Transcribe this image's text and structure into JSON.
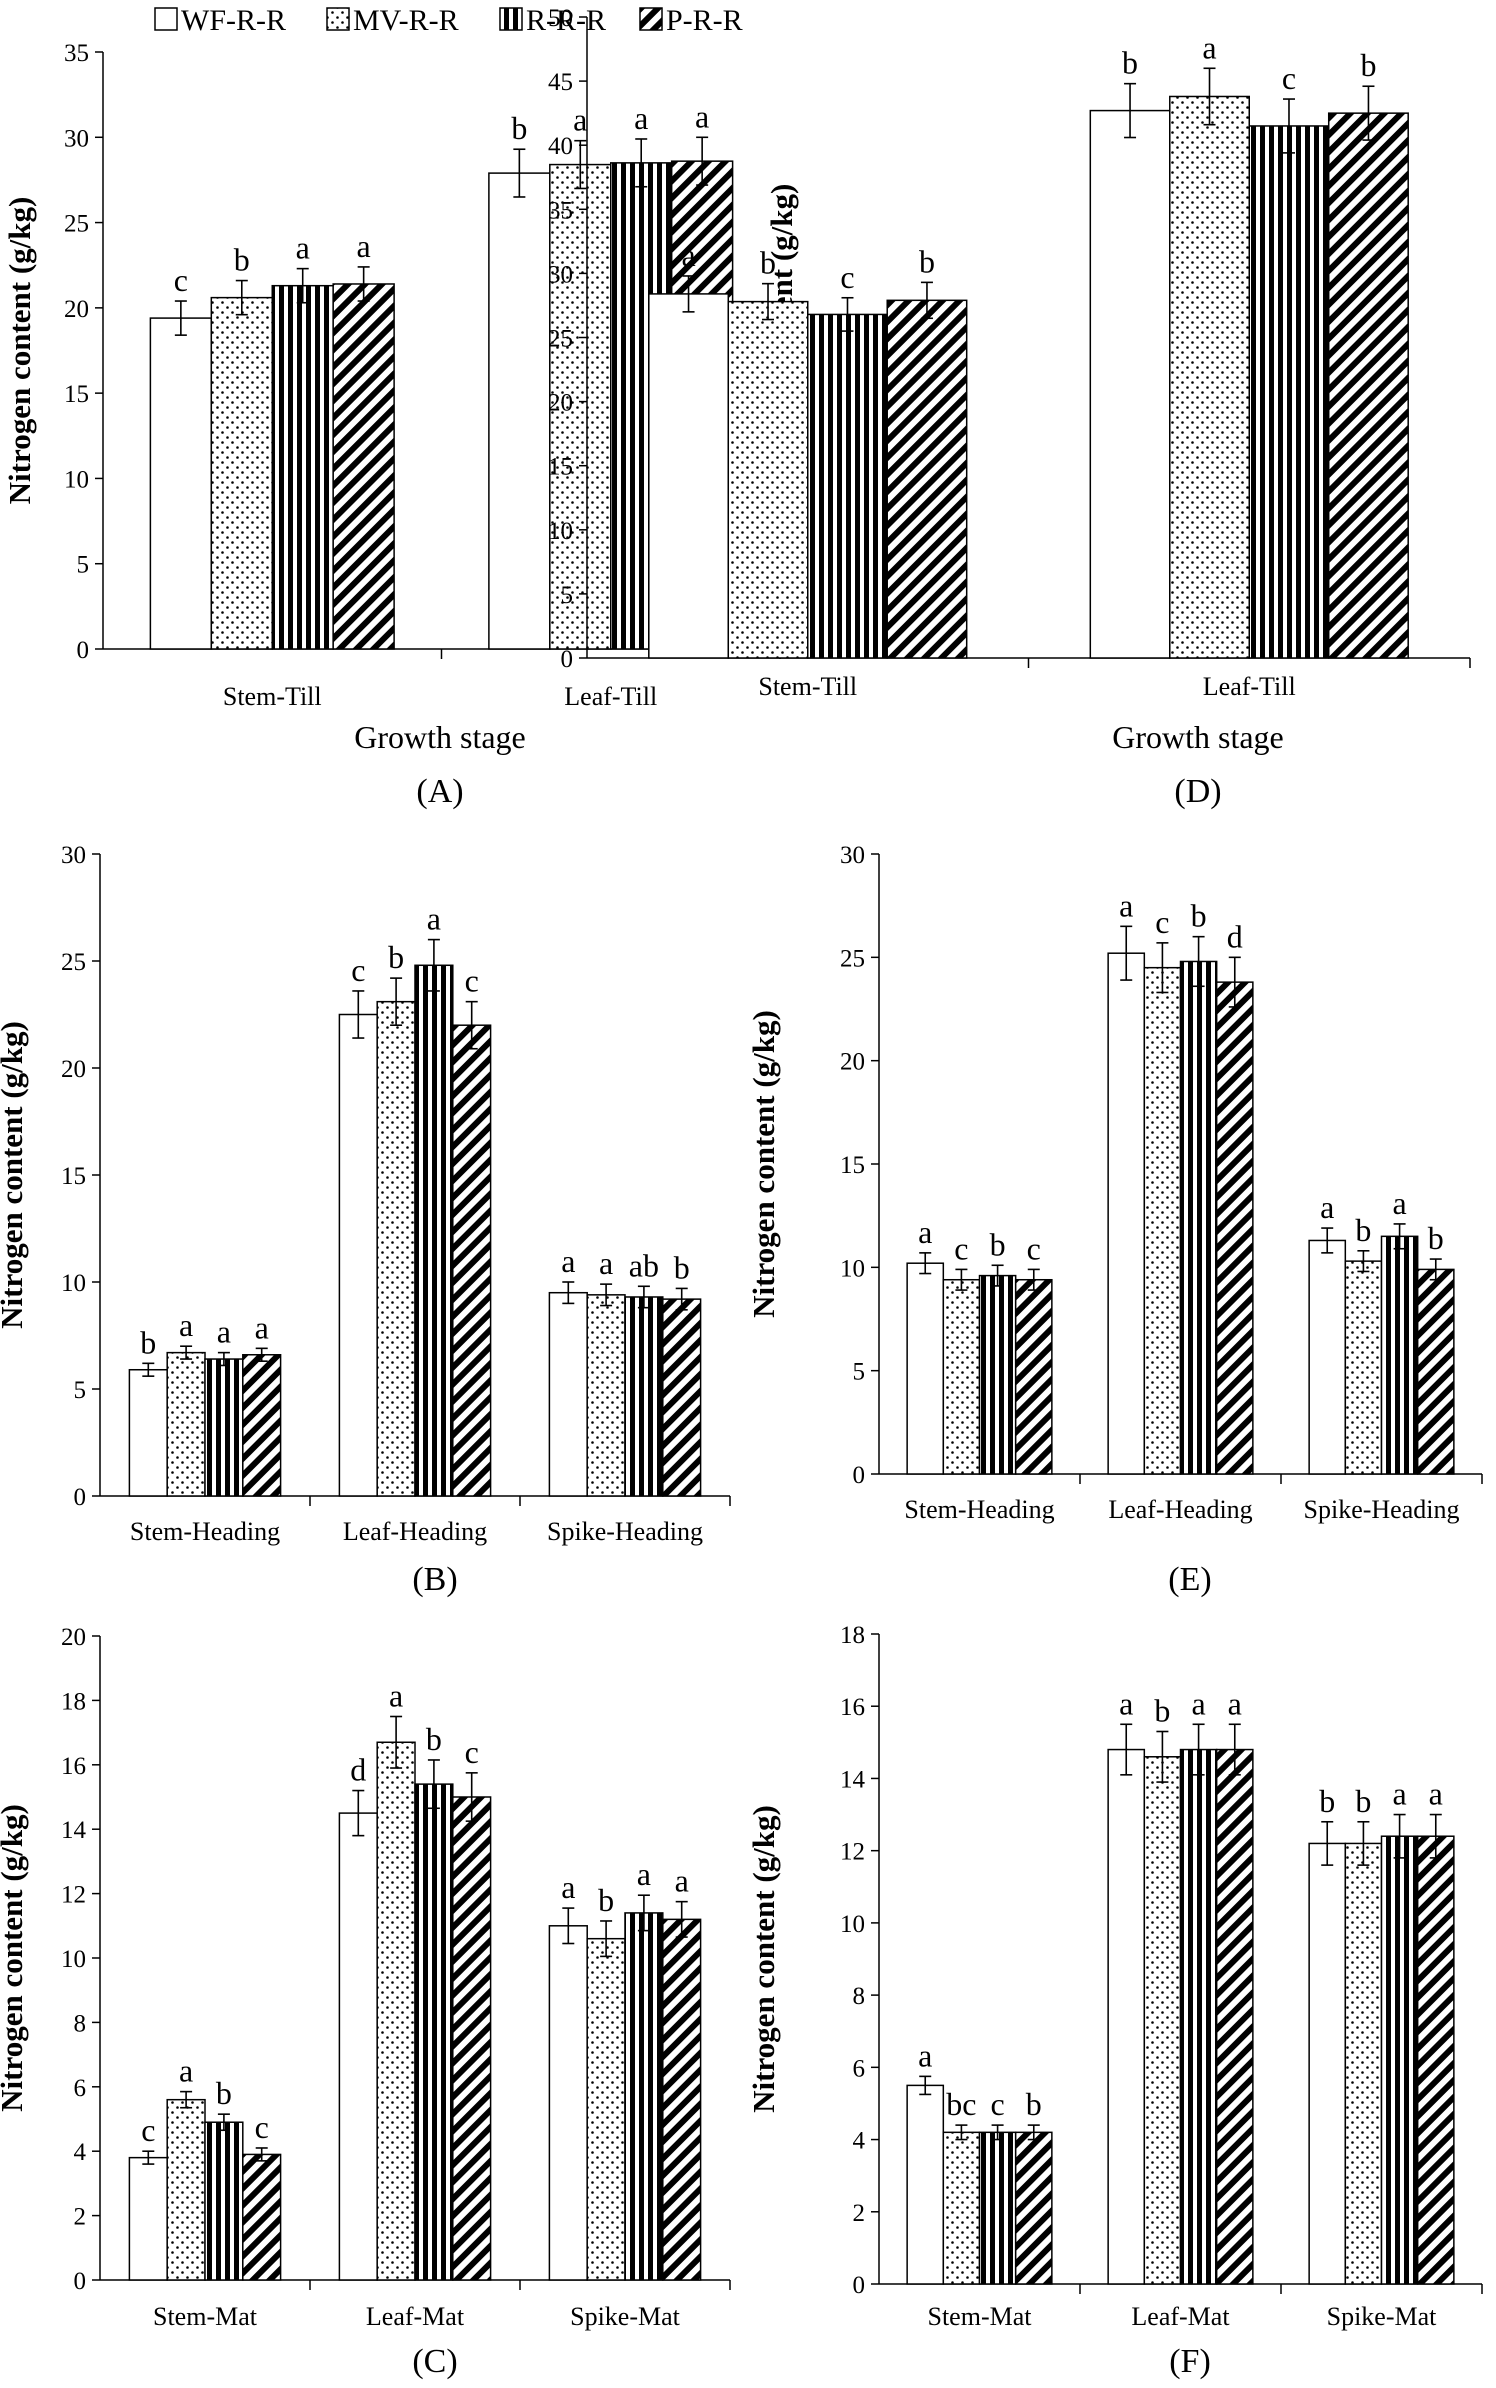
{
  "legend": {
    "series": [
      "WF-R-R",
      "MV-R-R",
      "R-R-R",
      "P-R-R"
    ]
  },
  "chart_data": [
    {
      "id": "A",
      "type": "bar",
      "panel_label": "(A)",
      "ylabel": "Nitrogen content (g/kg)",
      "xlabel": "Growth stage",
      "ylim": [
        0,
        35
      ],
      "yticks": [
        0,
        5,
        10,
        15,
        20,
        25,
        30,
        35
      ],
      "ytick_labels": [
        "0",
        "5",
        "10",
        "15",
        "20",
        "25",
        "30",
        "35"
      ],
      "categories": [
        "Stem-Till",
        "Leaf-Till"
      ],
      "series": [
        {
          "name": "WF-R-R",
          "values": [
            19.4,
            27.9
          ],
          "errors": [
            1.0,
            1.4
          ],
          "letters": [
            "c",
            "b"
          ]
        },
        {
          "name": "MV-R-R",
          "values": [
            20.6,
            28.4
          ],
          "errors": [
            1.0,
            1.4
          ],
          "letters": [
            "b",
            "a"
          ]
        },
        {
          "name": "R-R-R",
          "values": [
            21.3,
            28.5
          ],
          "errors": [
            1.0,
            1.4
          ],
          "letters": [
            "a",
            "a"
          ]
        },
        {
          "name": "P-R-R",
          "values": [
            21.4,
            28.6
          ],
          "errors": [
            1.0,
            1.4
          ],
          "letters": [
            "a",
            "a"
          ]
        }
      ]
    },
    {
      "id": "D",
      "type": "bar",
      "panel_label": "(D)",
      "ylabel": "Nitrogen content (g/kg)",
      "xlabel": "Growth stage",
      "ylim": [
        0,
        50
      ],
      "yticks": [
        0,
        5,
        10,
        15,
        20,
        25,
        30,
        35,
        40,
        45,
        50
      ],
      "ytick_labels": [
        "0",
        "5",
        "10",
        "15",
        "20",
        "25",
        "30",
        "35",
        "40",
        "45",
        "50"
      ],
      "categories": [
        "Stem-Till",
        "Leaf-Till"
      ],
      "series": [
        {
          "name": "WF-R-R",
          "values": [
            28.4,
            42.7
          ],
          "errors": [
            1.4,
            2.1
          ],
          "letters": [
            "a",
            "b"
          ]
        },
        {
          "name": "MV-R-R",
          "values": [
            27.8,
            43.8
          ],
          "errors": [
            1.4,
            2.2
          ],
          "letters": [
            "b",
            "a"
          ]
        },
        {
          "name": "R-R-R",
          "values": [
            26.8,
            41.5
          ],
          "errors": [
            1.3,
            2.1
          ],
          "letters": [
            "c",
            "c"
          ]
        },
        {
          "name": "P-R-R",
          "values": [
            27.9,
            42.5
          ],
          "errors": [
            1.4,
            2.1
          ],
          "letters": [
            "b",
            "b"
          ]
        }
      ]
    },
    {
      "id": "B",
      "type": "bar",
      "panel_label": "(B)",
      "ylabel": "Nitrogen content (g/kg)",
      "xlabel": "",
      "ylim": [
        0,
        30
      ],
      "yticks": [
        0,
        5,
        10,
        15,
        20,
        25,
        30
      ],
      "ytick_labels": [
        "0",
        "5",
        "10",
        "15",
        "20",
        "25",
        "30"
      ],
      "categories": [
        "Stem-Heading",
        "Leaf-Heading",
        "Spike-Heading"
      ],
      "series": [
        {
          "name": "WF-R-R",
          "values": [
            5.9,
            22.5,
            9.5
          ],
          "errors": [
            0.3,
            1.1,
            0.5
          ],
          "letters": [
            "b",
            "c",
            "a"
          ]
        },
        {
          "name": "MV-R-R",
          "values": [
            6.7,
            23.1,
            9.4
          ],
          "errors": [
            0.3,
            1.1,
            0.5
          ],
          "letters": [
            "a",
            "b",
            "a"
          ]
        },
        {
          "name": "R-R-R",
          "values": [
            6.4,
            24.8,
            9.3
          ],
          "errors": [
            0.3,
            1.2,
            0.5
          ],
          "letters": [
            "a",
            "a",
            "ab"
          ]
        },
        {
          "name": "P-R-R",
          "values": [
            6.6,
            22.0,
            9.2
          ],
          "errors": [
            0.3,
            1.1,
            0.5
          ],
          "letters": [
            "a",
            "c",
            "b"
          ]
        }
      ]
    },
    {
      "id": "E",
      "type": "bar",
      "panel_label": "(E)",
      "ylabel": "Nitrogen content (g/kg)",
      "xlabel": "",
      "ylim": [
        0,
        30
      ],
      "yticks": [
        0,
        5,
        10,
        15,
        20,
        25,
        30
      ],
      "ytick_labels": [
        "0",
        "5",
        "10",
        "15",
        "20",
        "25",
        "30"
      ],
      "categories": [
        "Stem-Heading",
        "Leaf-Heading",
        "Spike-Heading"
      ],
      "series": [
        {
          "name": "WF-R-R",
          "values": [
            10.2,
            25.2,
            11.3
          ],
          "errors": [
            0.5,
            1.3,
            0.6
          ],
          "letters": [
            "a",
            "a",
            "a"
          ]
        },
        {
          "name": "MV-R-R",
          "values": [
            9.4,
            24.5,
            10.3
          ],
          "errors": [
            0.5,
            1.2,
            0.5
          ],
          "letters": [
            "c",
            "c",
            "b"
          ]
        },
        {
          "name": "R-R-R",
          "values": [
            9.6,
            24.8,
            11.5
          ],
          "errors": [
            0.5,
            1.2,
            0.6
          ],
          "letters": [
            "b",
            "b",
            "a"
          ]
        },
        {
          "name": "P-R-R",
          "values": [
            9.4,
            23.8,
            9.9
          ],
          "errors": [
            0.5,
            1.2,
            0.5
          ],
          "letters": [
            "c",
            "d",
            "b"
          ]
        }
      ]
    },
    {
      "id": "C",
      "type": "bar",
      "panel_label": "(C)",
      "ylabel": "Nitrogen content (g/kg)",
      "xlabel": "",
      "ylim": [
        0,
        20
      ],
      "yticks": [
        0,
        2,
        4,
        6,
        8,
        10,
        12,
        14,
        16,
        18,
        20
      ],
      "ytick_labels": [
        "0",
        "2",
        "4",
        "6",
        "8",
        "10",
        "12",
        "14",
        "16",
        "18",
        "20"
      ],
      "categories": [
        "Stem-Mat",
        "Leaf-Mat",
        "Spike-Mat"
      ],
      "series": [
        {
          "name": "WF-R-R",
          "values": [
            3.8,
            14.5,
            11.0
          ],
          "errors": [
            0.2,
            0.7,
            0.55
          ],
          "letters": [
            "c",
            "d",
            "a"
          ]
        },
        {
          "name": "MV-R-R",
          "values": [
            5.6,
            16.7,
            10.6
          ],
          "errors": [
            0.25,
            0.8,
            0.55
          ],
          "letters": [
            "a",
            "a",
            "b"
          ]
        },
        {
          "name": "R-R-R",
          "values": [
            4.9,
            15.4,
            11.4
          ],
          "errors": [
            0.25,
            0.75,
            0.55
          ],
          "letters": [
            "b",
            "b",
            "a"
          ]
        },
        {
          "name": "P-R-R",
          "values": [
            3.9,
            15.0,
            11.2
          ],
          "errors": [
            0.2,
            0.75,
            0.55
          ],
          "letters": [
            "c",
            "c",
            "a"
          ]
        }
      ]
    },
    {
      "id": "F",
      "type": "bar",
      "panel_label": "(F)",
      "ylabel": "Nitrogen content (g/kg)",
      "xlabel": "",
      "ylim": [
        0,
        18
      ],
      "yticks": [
        0,
        2,
        4,
        6,
        8,
        10,
        12,
        14,
        16,
        18
      ],
      "ytick_labels": [
        "0",
        "2",
        "4",
        "6",
        "8",
        "10",
        "12",
        "14",
        "16",
        "18"
      ],
      "categories": [
        "Stem-Mat",
        "Leaf-Mat",
        "Spike-Mat"
      ],
      "series": [
        {
          "name": "WF-R-R",
          "values": [
            5.5,
            14.8,
            12.2
          ],
          "errors": [
            0.25,
            0.7,
            0.6
          ],
          "letters": [
            "a",
            "a",
            "b"
          ]
        },
        {
          "name": "MV-R-R",
          "values": [
            4.2,
            14.6,
            12.2
          ],
          "errors": [
            0.2,
            0.7,
            0.6
          ],
          "letters": [
            "bc",
            "b",
            "b"
          ]
        },
        {
          "name": "R-R-R",
          "values": [
            4.2,
            14.8,
            12.4
          ],
          "errors": [
            0.2,
            0.7,
            0.6
          ],
          "letters": [
            "c",
            "a",
            "a"
          ]
        },
        {
          "name": "P-R-R",
          "values": [
            4.2,
            14.8,
            12.4
          ],
          "errors": [
            0.2,
            0.7,
            0.6
          ],
          "letters": [
            "b",
            "a",
            "a"
          ]
        }
      ]
    }
  ]
}
